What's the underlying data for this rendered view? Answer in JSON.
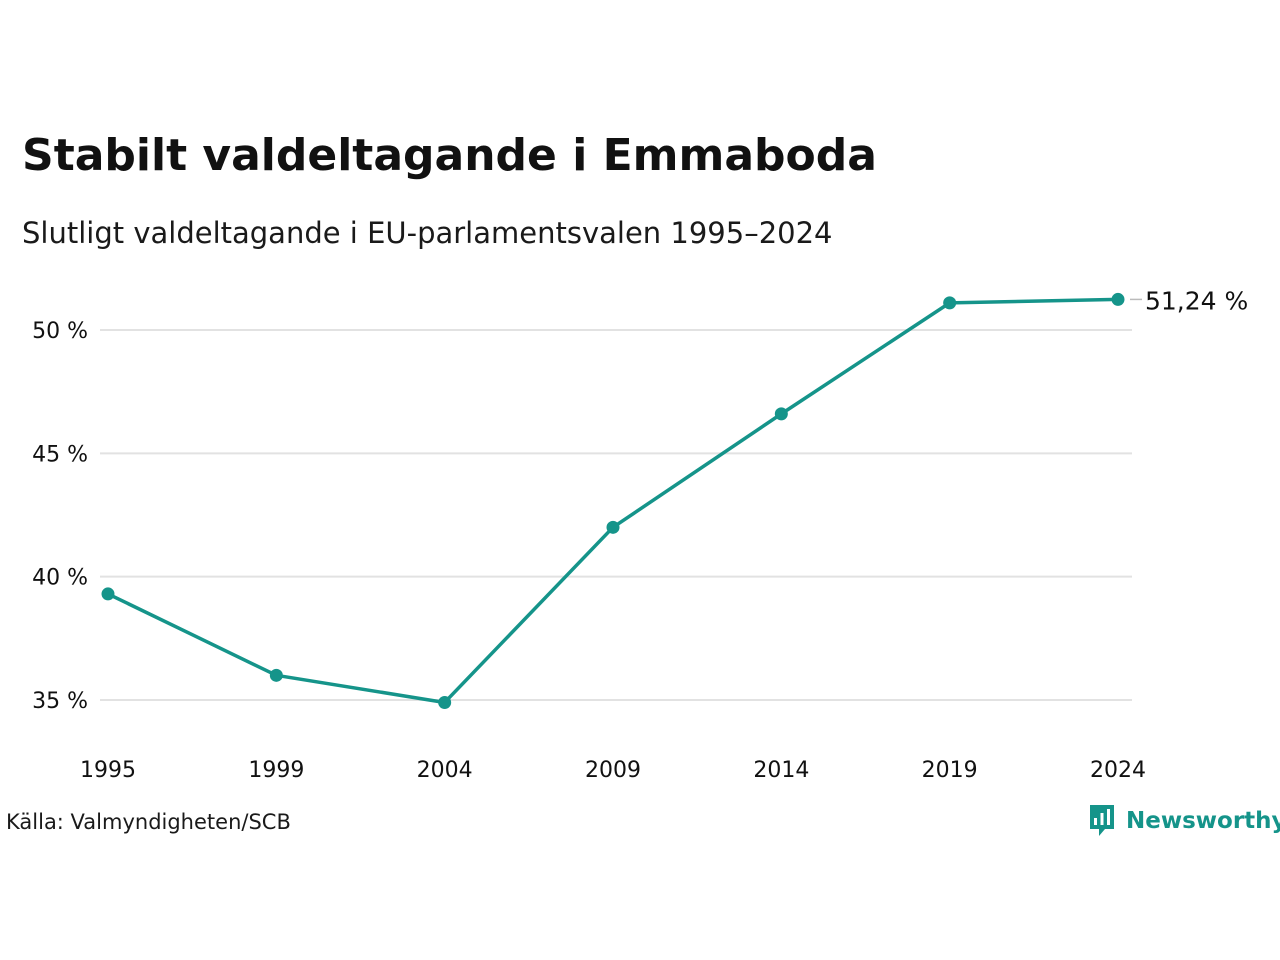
{
  "title": "Stabilt valdeltagande i Emmaboda",
  "subtitle": "Slutligt valdeltagande i EU-parlamentsvalen 1995–2024",
  "source": "Källa: Valmyndigheten/SCB",
  "brand": {
    "name": "Newsworthy",
    "icon": "bar-chart-speech-bubble-icon"
  },
  "colors": {
    "line": "#15948a",
    "grid": "#e2e2e2",
    "text": "#111111",
    "brand": "#15948a"
  },
  "chart_data": {
    "type": "line",
    "title": "Stabilt valdeltagande i Emmaboda",
    "subtitle": "Slutligt valdeltagande i EU-parlamentsvalen 1995–2024",
    "xlabel": "",
    "ylabel": "",
    "categories": [
      "1995",
      "1999",
      "2004",
      "2009",
      "2014",
      "2019",
      "2024"
    ],
    "series": [
      {
        "values": [
          39.3,
          36.0,
          34.9,
          42.0,
          46.6,
          51.1,
          51.24
        ]
      }
    ],
    "yticks": [
      35,
      40,
      45,
      50
    ],
    "ytick_labels": [
      "35 %",
      "40 %",
      "45 %",
      "50 %"
    ],
    "ylim": [
      34.5,
      52
    ],
    "grid": true,
    "legend": "none",
    "end_label": "51,24 %"
  }
}
